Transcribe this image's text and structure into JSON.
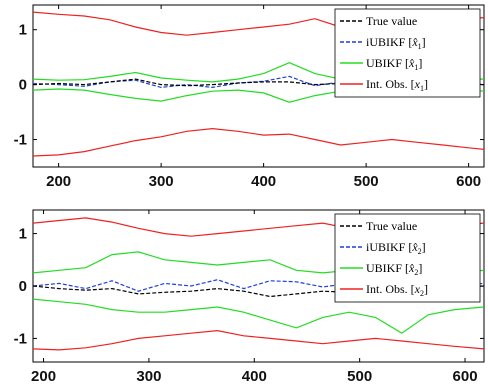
{
  "chart_data": [
    {
      "type": "line",
      "panel": "top",
      "xlim": [
        175,
        615
      ],
      "ylim": [
        -1.5,
        1.45
      ],
      "xticks": [
        200,
        300,
        400,
        500,
        600
      ],
      "yticks": [
        -1,
        0,
        1
      ],
      "grid": false,
      "legend_placement": "top-right",
      "legend": [
        {
          "key": "true",
          "label": "True value",
          "color": "#000000",
          "dash": "dashed"
        },
        {
          "key": "iubikf",
          "label": "iUBIKF [x̂1]",
          "color": "#1f3fdc",
          "dash": "dashed"
        },
        {
          "key": "ubikf",
          "label": "UBIKF [x̂1]",
          "color": "#22dd22",
          "dash": "solid"
        },
        {
          "key": "intobs",
          "label": "Int. Obs. [x1]",
          "color": "#ee2222",
          "dash": "solid"
        }
      ],
      "series": [
        {
          "key": "intobs_upper",
          "color": "#ee2222",
          "dash": "solid",
          "x": [
            175,
            200,
            225,
            250,
            275,
            300,
            325,
            350,
            375,
            400,
            425,
            450,
            475,
            500,
            525,
            550,
            575,
            600,
            615
          ],
          "y": [
            1.32,
            1.28,
            1.25,
            1.18,
            1.05,
            0.95,
            0.9,
            0.95,
            1.0,
            1.05,
            1.1,
            1.2,
            1.05,
            1.0,
            1.05,
            1.1,
            1.15,
            1.2,
            1.22
          ]
        },
        {
          "key": "intobs_lower",
          "color": "#ee2222",
          "dash": "solid",
          "x": [
            175,
            200,
            225,
            250,
            275,
            300,
            325,
            350,
            375,
            400,
            425,
            450,
            475,
            500,
            525,
            550,
            575,
            600,
            615
          ],
          "y": [
            -1.3,
            -1.28,
            -1.22,
            -1.12,
            -1.02,
            -0.95,
            -0.85,
            -0.8,
            -0.85,
            -0.92,
            -0.9,
            -1.0,
            -1.1,
            -1.05,
            -1.0,
            -1.05,
            -1.1,
            -1.15,
            -1.18
          ]
        },
        {
          "key": "ubikf_upper",
          "color": "#22dd22",
          "dash": "solid",
          "x": [
            175,
            200,
            225,
            250,
            275,
            300,
            325,
            350,
            375,
            400,
            425,
            450,
            475,
            500,
            525,
            550,
            575,
            600,
            615
          ],
          "y": [
            0.1,
            0.08,
            0.09,
            0.15,
            0.22,
            0.12,
            0.08,
            0.05,
            0.1,
            0.2,
            0.4,
            0.2,
            0.1,
            0.08,
            0.12,
            0.1,
            0.09,
            0.1,
            0.1
          ]
        },
        {
          "key": "ubikf_lower",
          "color": "#22dd22",
          "dash": "solid",
          "x": [
            175,
            200,
            225,
            250,
            275,
            300,
            325,
            350,
            375,
            400,
            425,
            450,
            475,
            500,
            525,
            550,
            575,
            600,
            615
          ],
          "y": [
            -0.1,
            -0.08,
            -0.1,
            -0.18,
            -0.25,
            -0.3,
            -0.2,
            -0.12,
            -0.1,
            -0.15,
            -0.32,
            -0.2,
            -0.12,
            -0.1,
            -0.12,
            -0.15,
            -0.1,
            -0.1,
            -0.12
          ]
        },
        {
          "key": "iubikf",
          "color": "#1f3fdc",
          "dash": "dashed",
          "x": [
            175,
            200,
            225,
            250,
            275,
            300,
            325,
            350,
            375,
            400,
            425,
            450,
            475,
            500,
            525,
            550,
            575,
            600,
            615
          ],
          "y": [
            0.02,
            0.0,
            -0.03,
            0.05,
            0.08,
            -0.05,
            0.0,
            -0.05,
            0.03,
            0.06,
            0.15,
            -0.02,
            0.05,
            -0.03,
            0.02,
            0.0,
            -0.02,
            0.02,
            0.0
          ]
        },
        {
          "key": "true",
          "color": "#000000",
          "dash": "dashed",
          "x": [
            175,
            200,
            225,
            250,
            275,
            300,
            325,
            350,
            375,
            400,
            425,
            450,
            475,
            500,
            525,
            550,
            575,
            600,
            615
          ],
          "y": [
            0.0,
            0.02,
            0.0,
            0.05,
            0.1,
            0.0,
            -0.02,
            0.0,
            0.03,
            0.05,
            0.05,
            0.0,
            0.02,
            0.0,
            0.0,
            0.02,
            0.0,
            0.0,
            0.0
          ]
        }
      ]
    },
    {
      "type": "line",
      "panel": "bottom",
      "xlim": [
        190,
        618
      ],
      "ylim": [
        -1.45,
        1.45
      ],
      "xticks": [
        200,
        300,
        400,
        500,
        600
      ],
      "yticks": [
        -1,
        0,
        1
      ],
      "grid": false,
      "legend_placement": "top-right",
      "legend": [
        {
          "key": "true",
          "label": "True value",
          "color": "#000000",
          "dash": "dashed"
        },
        {
          "key": "iubikf",
          "label": "iUBIKF [x̂2]",
          "color": "#1f3fdc",
          "dash": "dashed"
        },
        {
          "key": "ubikf",
          "label": "UBIKF [x̂2]",
          "color": "#22dd22",
          "dash": "solid"
        },
        {
          "key": "intobs",
          "label": "Int. Obs. [x2]",
          "color": "#ee2222",
          "dash": "solid"
        }
      ],
      "series": [
        {
          "key": "intobs_upper",
          "color": "#ee2222",
          "dash": "solid",
          "x": [
            190,
            215,
            240,
            265,
            290,
            315,
            340,
            365,
            390,
            415,
            440,
            465,
            490,
            515,
            540,
            565,
            590,
            618
          ],
          "y": [
            1.2,
            1.25,
            1.3,
            1.22,
            1.1,
            1.0,
            0.95,
            1.0,
            1.05,
            1.1,
            1.15,
            1.2,
            1.1,
            1.05,
            1.05,
            1.1,
            1.15,
            1.2
          ]
        },
        {
          "key": "intobs_lower",
          "color": "#ee2222",
          "dash": "solid",
          "x": [
            190,
            215,
            240,
            265,
            290,
            315,
            340,
            365,
            390,
            415,
            440,
            465,
            490,
            515,
            540,
            565,
            590,
            618
          ],
          "y": [
            -1.2,
            -1.22,
            -1.18,
            -1.1,
            -1.0,
            -0.95,
            -0.9,
            -0.85,
            -0.95,
            -1.0,
            -1.05,
            -1.1,
            -1.05,
            -1.0,
            -1.05,
            -1.1,
            -1.15,
            -1.2
          ]
        },
        {
          "key": "ubikf_upper",
          "color": "#22dd22",
          "dash": "solid",
          "x": [
            190,
            215,
            240,
            265,
            290,
            315,
            340,
            365,
            390,
            415,
            440,
            465,
            490,
            515,
            540,
            565,
            590,
            618
          ],
          "y": [
            0.25,
            0.3,
            0.35,
            0.6,
            0.65,
            0.5,
            0.45,
            0.4,
            0.45,
            0.5,
            0.3,
            0.25,
            0.3,
            0.35,
            0.3,
            0.25,
            0.25,
            0.3
          ]
        },
        {
          "key": "ubikf_lower",
          "color": "#22dd22",
          "dash": "solid",
          "x": [
            190,
            215,
            240,
            265,
            290,
            315,
            340,
            365,
            390,
            415,
            440,
            465,
            490,
            515,
            540,
            565,
            590,
            618
          ],
          "y": [
            -0.25,
            -0.3,
            -0.35,
            -0.45,
            -0.5,
            -0.5,
            -0.45,
            -0.4,
            -0.5,
            -0.65,
            -0.8,
            -0.6,
            -0.5,
            -0.6,
            -0.9,
            -0.55,
            -0.45,
            -0.4
          ]
        },
        {
          "key": "iubikf",
          "color": "#1f3fdc",
          "dash": "dashed",
          "x": [
            190,
            215,
            240,
            265,
            290,
            315,
            340,
            365,
            390,
            415,
            440,
            465,
            490,
            515,
            540,
            565,
            590,
            618
          ],
          "y": [
            0.0,
            0.05,
            -0.05,
            0.1,
            -0.1,
            0.05,
            0.0,
            0.12,
            -0.05,
            0.1,
            0.08,
            -0.02,
            0.05,
            -0.1,
            -0.05,
            0.02,
            0.0,
            0.05
          ]
        },
        {
          "key": "true",
          "color": "#000000",
          "dash": "dashed",
          "x": [
            190,
            215,
            240,
            265,
            290,
            315,
            340,
            365,
            390,
            415,
            440,
            465,
            490,
            515,
            540,
            565,
            590,
            618
          ],
          "y": [
            0.0,
            -0.05,
            -0.08,
            -0.05,
            -0.15,
            -0.12,
            -0.1,
            -0.05,
            -0.1,
            -0.2,
            -0.15,
            -0.1,
            -0.12,
            -0.15,
            -0.2,
            -0.1,
            -0.05,
            0.0
          ]
        }
      ]
    }
  ]
}
